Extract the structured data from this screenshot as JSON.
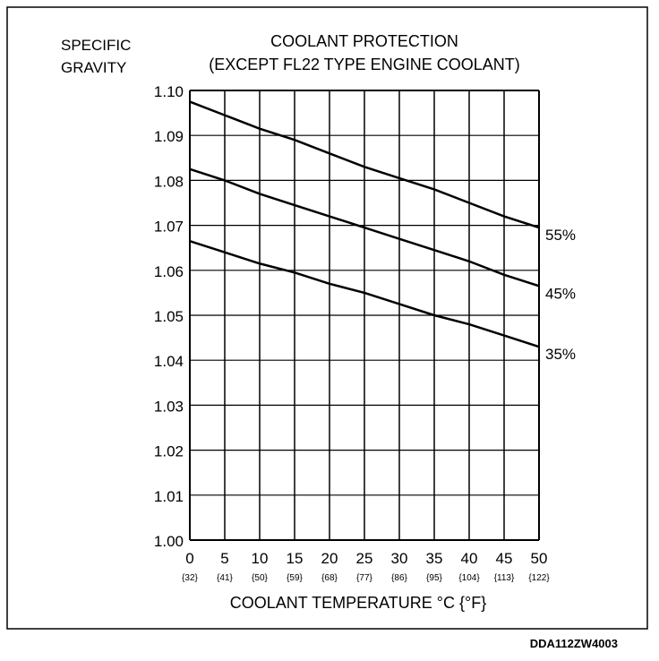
{
  "chart_data": {
    "type": "line",
    "title": "COOLANT PROTECTION",
    "subtitle": "(EXCEPT FL22 TYPE ENGINE COOLANT)",
    "ylabel_lines": [
      "SPECIFIC",
      "GRAVITY"
    ],
    "xlabel": "COOLANT TEMPERATURE  °C {°F}",
    "x": [
      0,
      5,
      10,
      15,
      20,
      25,
      30,
      35,
      40,
      45,
      50
    ],
    "x_tick_labels": [
      "0",
      "5",
      "10",
      "15",
      "20",
      "25",
      "30",
      "35",
      "40",
      "45",
      "50"
    ],
    "x_tick_sublabels": [
      "{32}",
      "{41}",
      "{50}",
      "{59}",
      "{68}",
      "{77}",
      "{86}",
      "{95}",
      "{104}",
      "{113}",
      "{122}"
    ],
    "xlim": [
      0,
      50
    ],
    "ylim": [
      1.0,
      1.1
    ],
    "y_ticks": [
      1.0,
      1.01,
      1.02,
      1.03,
      1.04,
      1.05,
      1.06,
      1.07,
      1.08,
      1.09,
      1.1
    ],
    "y_tick_labels": [
      "1.00",
      "1.01",
      "1.02",
      "1.03",
      "1.04",
      "1.05",
      "1.06",
      "1.07",
      "1.08",
      "1.09",
      "1.10"
    ],
    "grid": true,
    "series": [
      {
        "name": "55%",
        "values": [
          1.0975,
          1.0945,
          1.0915,
          1.089,
          1.086,
          1.083,
          1.0805,
          1.078,
          1.075,
          1.072,
          1.0695
        ]
      },
      {
        "name": "45%",
        "values": [
          1.0825,
          1.08,
          1.077,
          1.0745,
          1.072,
          1.0695,
          1.067,
          1.0645,
          1.062,
          1.059,
          1.0565
        ]
      },
      {
        "name": "35%",
        "values": [
          1.0665,
          1.064,
          1.0615,
          1.0595,
          1.057,
          1.055,
          1.0525,
          1.05,
          1.048,
          1.0455,
          1.043
        ]
      }
    ]
  },
  "figure_id": "DDA112ZW4003"
}
